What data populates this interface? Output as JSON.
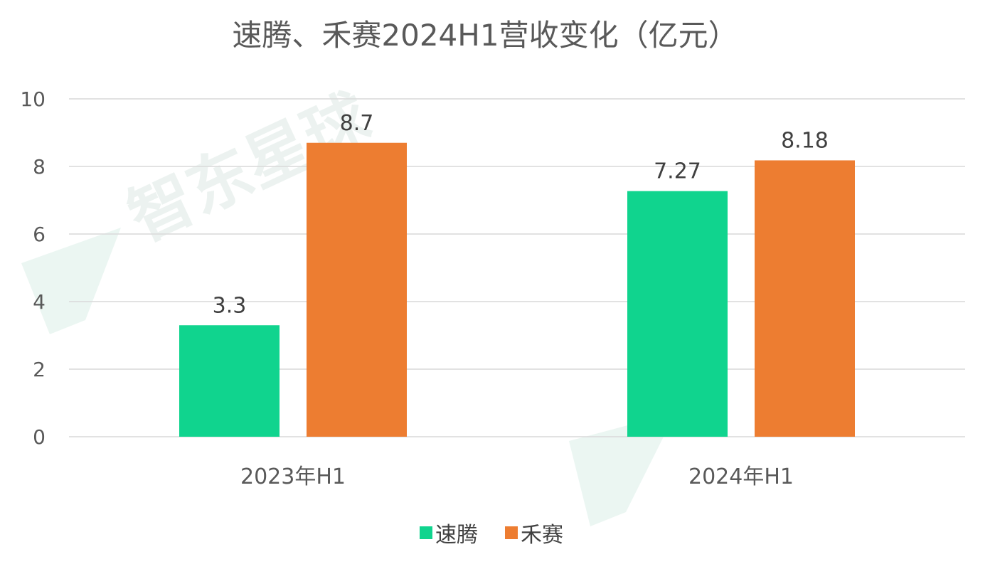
{
  "chart_data": {
    "type": "bar",
    "title": "速腾、禾赛2024H1营收变化（亿元）",
    "categories": [
      "2023年H1",
      "2024年H1"
    ],
    "series": [
      {
        "name": "速腾",
        "values": [
          3.3,
          7.27
        ],
        "labels": [
          "3.3",
          "7.27"
        ],
        "color": "#10d48e"
      },
      {
        "name": "禾赛",
        "values": [
          8.7,
          8.18
        ],
        "labels": [
          "8.7",
          "8.18"
        ],
        "color": "#ed7d31"
      }
    ],
    "ylim": [
      0,
      10
    ],
    "yticks": [
      "0",
      "2",
      "4",
      "6",
      "8",
      "10"
    ],
    "grid": true,
    "legend_position": "bottom",
    "watermark": "智东星球"
  }
}
